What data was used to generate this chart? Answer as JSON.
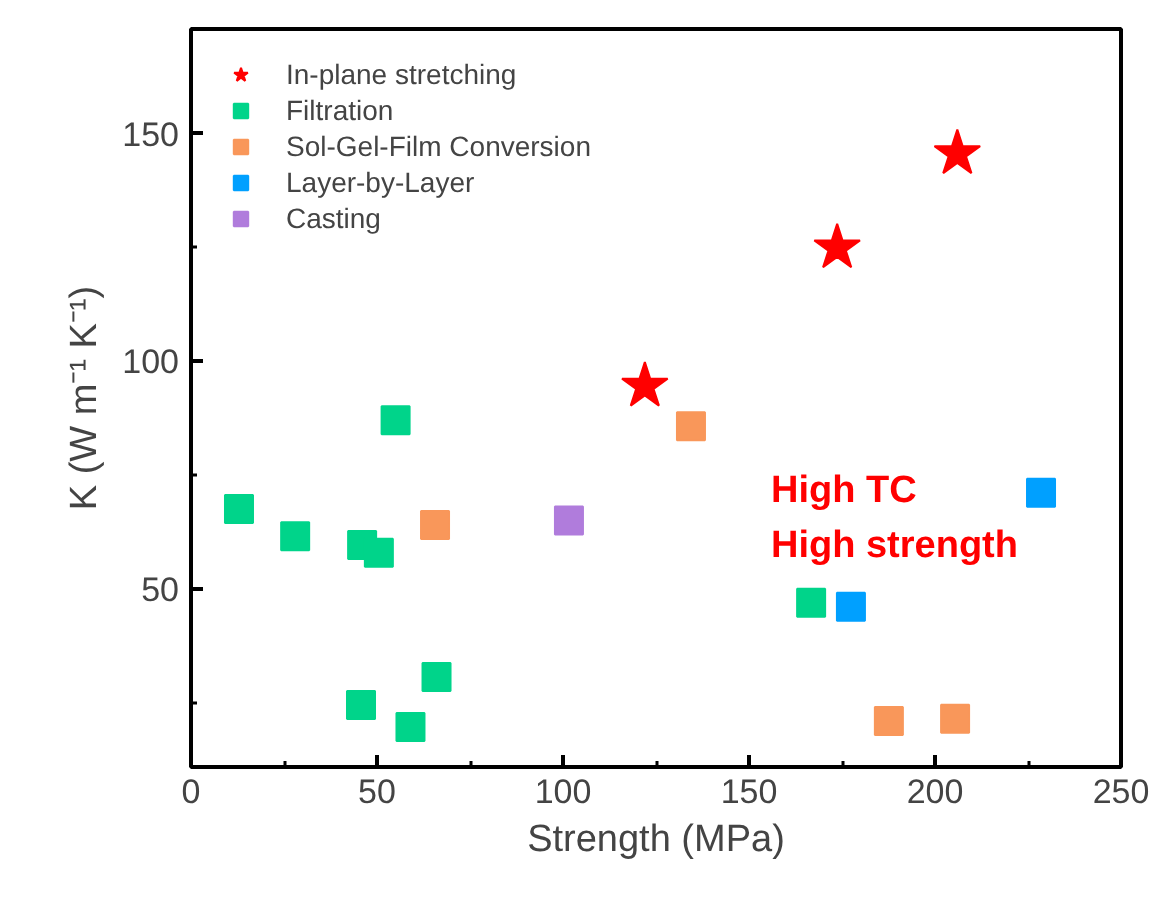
{
  "chart_data": {
    "type": "scatter",
    "xlabel": "Strength (MPa)",
    "ylabel": "K (W m⁻¹ K⁻¹)",
    "xlim": [
      0,
      250
    ],
    "xticks": [
      0,
      50,
      100,
      150,
      200,
      250
    ],
    "ylim": [
      10.8,
      173
    ],
    "yticks": [
      50,
      100,
      150
    ],
    "grid": false,
    "legend": "top left",
    "annotations": [
      "High TC\nHigh strength"
    ],
    "series": [
      {
        "name": "In-plane stretching",
        "color": "#ff0000",
        "marker": "star",
        "x": [
          206,
          173.7,
          122
        ],
        "values": [
          145.6,
          124.9,
          94.5
        ]
      },
      {
        "name": "Filtration",
        "color": "#00d48a",
        "marker": "square",
        "x": [
          55,
          12.9,
          28,
          46,
          50.5,
          166.7,
          66,
          45.7,
          59
        ],
        "values": [
          87,
          67.5,
          61.5,
          59.6,
          57.9,
          46.9,
          30.6,
          24.4,
          19.6
        ]
      },
      {
        "name": "Sol-Gel-Film Conversion",
        "color": "#f9975a",
        "marker": "square",
        "x": [
          134.4,
          65.6,
          187.6,
          205.4
        ],
        "values": [
          85.7,
          64,
          20.9,
          21.4
        ]
      },
      {
        "name": "Layer-by-Layer",
        "color": "#00a0ff",
        "marker": "square",
        "x": [
          228.5,
          177.4
        ],
        "values": [
          71.1,
          46
        ]
      },
      {
        "name": "Casting",
        "color": "#b07cdc",
        "marker": "square",
        "x": [
          101.6
        ],
        "values": [
          65
        ]
      }
    ]
  }
}
